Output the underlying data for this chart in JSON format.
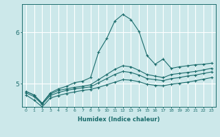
{
  "xlabel": "Humidex (Indice chaleur)",
  "ylabel": "",
  "background_color": "#cce8ea",
  "line_color": "#1a6b6b",
  "grid_color": "#ffffff",
  "xlim": [
    -0.5,
    23.5
  ],
  "ylim": [
    4.55,
    6.55
  ],
  "yticks": [
    5,
    6
  ],
  "xticks": [
    0,
    1,
    2,
    3,
    4,
    5,
    6,
    7,
    8,
    9,
    10,
    11,
    12,
    13,
    14,
    15,
    16,
    17,
    18,
    19,
    20,
    21,
    22,
    23
  ],
  "lines": [
    [
      4.85,
      4.78,
      4.62,
      4.82,
      4.9,
      4.95,
      5.02,
      5.05,
      5.12,
      5.62,
      5.88,
      6.22,
      6.35,
      6.25,
      6.02,
      5.55,
      5.38,
      5.48,
      5.3,
      5.33,
      5.35,
      5.37,
      5.38,
      5.4
    ],
    [
      4.85,
      4.78,
      4.62,
      4.8,
      4.87,
      4.9,
      4.93,
      4.95,
      4.98,
      5.08,
      5.18,
      5.28,
      5.35,
      5.33,
      5.26,
      5.18,
      5.15,
      5.12,
      5.18,
      5.2,
      5.22,
      5.24,
      5.27,
      5.3
    ],
    [
      4.82,
      4.75,
      4.6,
      4.77,
      4.83,
      4.87,
      4.9,
      4.92,
      4.94,
      5.02,
      5.1,
      5.18,
      5.24,
      5.22,
      5.17,
      5.1,
      5.08,
      5.06,
      5.1,
      5.12,
      5.15,
      5.17,
      5.2,
      5.23
    ],
    [
      4.78,
      4.68,
      4.55,
      4.72,
      4.77,
      4.81,
      4.84,
      4.87,
      4.89,
      4.93,
      4.98,
      5.03,
      5.08,
      5.07,
      5.04,
      4.99,
      4.97,
      4.96,
      4.99,
      5.01,
      5.03,
      5.06,
      5.09,
      5.12
    ]
  ]
}
